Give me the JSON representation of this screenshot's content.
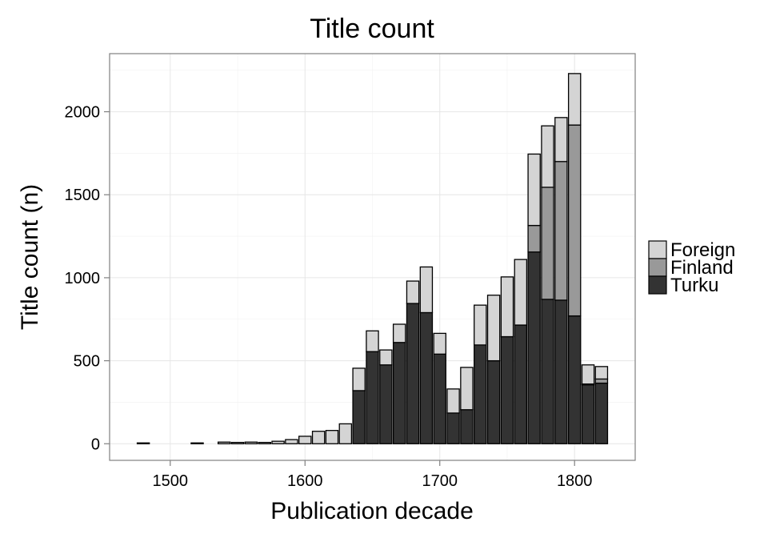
{
  "chart_data": {
    "type": "bar",
    "stacked": true,
    "title": "Title count",
    "xlabel": "Publication decade",
    "ylabel": "Title count (n)",
    "xlim": [
      1455,
      1845
    ],
    "ylim": [
      -100,
      2350
    ],
    "x_ticks": [
      1500,
      1600,
      1700,
      1800
    ],
    "y_ticks": [
      0,
      500,
      1000,
      1500,
      2000
    ],
    "grid": true,
    "legend_position": "right",
    "x": [
      1480,
      1520,
      1540,
      1550,
      1560,
      1570,
      1580,
      1590,
      1600,
      1610,
      1620,
      1630,
      1640,
      1650,
      1660,
      1670,
      1680,
      1690,
      1700,
      1710,
      1720,
      1730,
      1740,
      1750,
      1760,
      1770,
      1780,
      1790,
      1800,
      1810,
      1820
    ],
    "series": [
      {
        "name": "Turku",
        "color": "#333333",
        "values": [
          0,
          0,
          0,
          0,
          0,
          0,
          0,
          0,
          0,
          0,
          0,
          0,
          320,
          555,
          475,
          610,
          845,
          790,
          540,
          185,
          205,
          595,
          500,
          645,
          715,
          1155,
          870,
          865,
          770,
          355,
          365
        ]
      },
      {
        "name": "Finland",
        "color": "#999999",
        "values": [
          0,
          0,
          0,
          0,
          0,
          0,
          0,
          0,
          0,
          0,
          0,
          0,
          0,
          0,
          0,
          0,
          0,
          0,
          0,
          0,
          0,
          0,
          0,
          0,
          0,
          160,
          675,
          835,
          1150,
          5,
          25
        ]
      },
      {
        "name": "Foreign",
        "color": "#d4d4d4",
        "values": [
          5,
          5,
          10,
          8,
          10,
          8,
          15,
          25,
          45,
          75,
          80,
          120,
          135,
          125,
          90,
          110,
          135,
          275,
          125,
          145,
          255,
          240,
          395,
          360,
          395,
          430,
          370,
          265,
          310,
          115,
          75
        ]
      }
    ],
    "legend_order": [
      "Foreign",
      "Finland",
      "Turku"
    ]
  }
}
